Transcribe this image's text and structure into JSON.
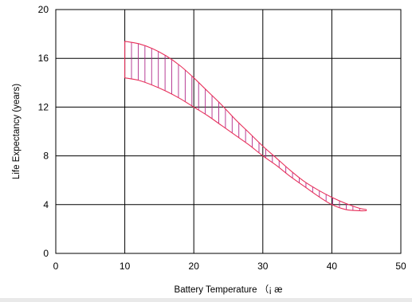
{
  "chart_data": {
    "type": "area",
    "title": "",
    "xlabel": "Battery Temperature （¡ æ",
    "ylabel": "Life Expectancy (years)",
    "xlim": [
      0,
      50
    ],
    "ylim": [
      0,
      20
    ],
    "x_ticks": [
      0,
      10,
      20,
      30,
      40,
      50
    ],
    "y_ticks": [
      0,
      4,
      8,
      12,
      16,
      20
    ],
    "grid": true,
    "legend": "none",
    "series": [
      {
        "values": [
          [
            10,
            17.4
          ],
          [
            12,
            17.2
          ],
          [
            14,
            16.8
          ],
          [
            16,
            16.2
          ],
          [
            18,
            15.4
          ],
          [
            20,
            14.4
          ],
          [
            22,
            13.3
          ],
          [
            24,
            12.2
          ],
          [
            26,
            11.0
          ],
          [
            28,
            9.9
          ],
          [
            30,
            8.8
          ],
          [
            32,
            7.8
          ],
          [
            34,
            6.8
          ],
          [
            36,
            5.9
          ],
          [
            38,
            5.2
          ],
          [
            40,
            4.6
          ],
          [
            42,
            4.1
          ],
          [
            44,
            3.7
          ],
          [
            45,
            3.6
          ]
        ]
      },
      {
        "values": [
          [
            10,
            14.4
          ],
          [
            12,
            14.2
          ],
          [
            14,
            13.8
          ],
          [
            16,
            13.3
          ],
          [
            18,
            12.7
          ],
          [
            20,
            12.0
          ],
          [
            22,
            11.3
          ],
          [
            24,
            10.5
          ],
          [
            26,
            9.7
          ],
          [
            28,
            8.9
          ],
          [
            30,
            8.0
          ],
          [
            32,
            7.2
          ],
          [
            34,
            6.3
          ],
          [
            36,
            5.5
          ],
          [
            38,
            4.7
          ],
          [
            40,
            4.0
          ],
          [
            42,
            3.6
          ],
          [
            44,
            3.5
          ],
          [
            45,
            3.5
          ]
        ]
      }
    ],
    "colors": {
      "band_outline": "#e8305a",
      "hatch": "#b02a8a",
      "grid": "#000000"
    }
  }
}
